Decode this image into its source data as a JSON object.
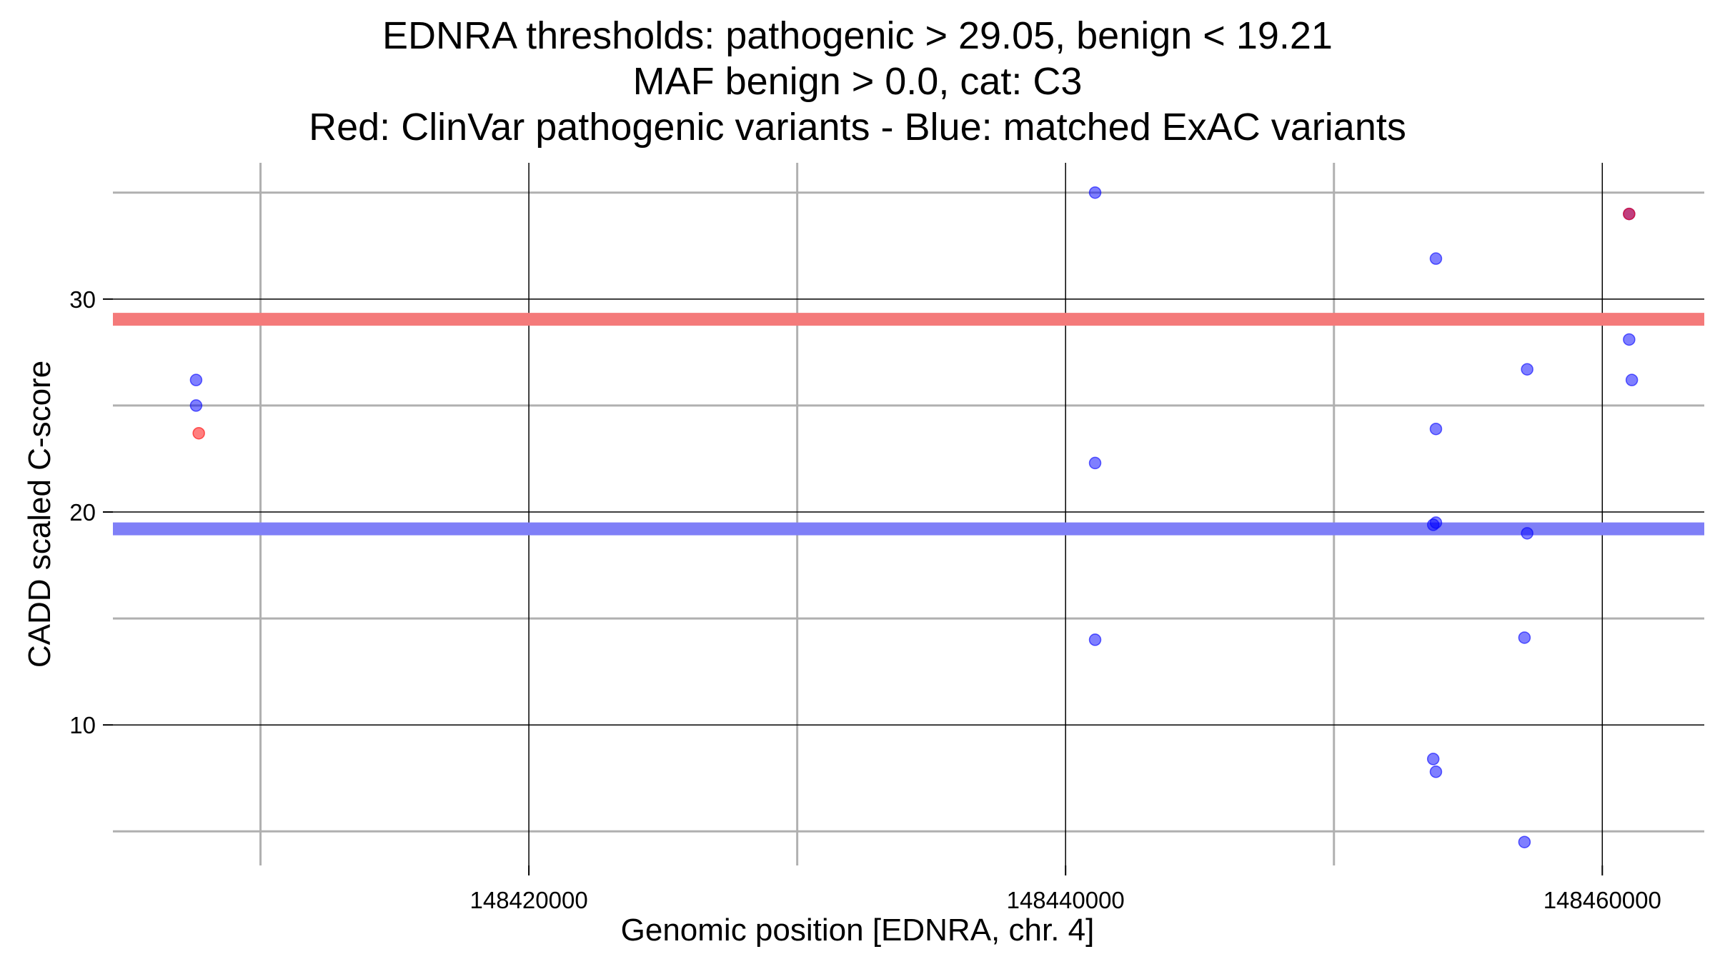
{
  "chart_data": {
    "type": "scatter",
    "title_lines": [
      "EDNRA thresholds: pathogenic > 29.05, benign < 19.21",
      "MAF benign > 0.0, cat: C3",
      "Red: ClinVar pathogenic variants - Blue: matched ExAC variants"
    ],
    "xlabel": "Genomic position [EDNRA, chr. 4]",
    "ylabel": "CADD scaled C-score",
    "x_ticks": [
      148420000,
      148440000,
      148460000
    ],
    "x_tick_labels": [
      "148420000",
      "148440000",
      "148460000"
    ],
    "x_minor_ticks": [
      148410000,
      148430000,
      148450000
    ],
    "y_ticks": [
      10,
      20,
      30
    ],
    "y_tick_labels": [
      "10",
      "20",
      "30"
    ],
    "y_minor_ticks": [
      5,
      15,
      25,
      35
    ],
    "xlim": [
      148404500,
      148463800
    ],
    "ylim": [
      3.4,
      36.4
    ],
    "thresholds": [
      {
        "name": "pathogenic",
        "value": 29.05,
        "color": "#f47a7a"
      },
      {
        "name": "benign",
        "value": 19.21,
        "color": "#7f7ff7"
      }
    ],
    "series": [
      {
        "color": "#ff0000",
        "points": [
          {
            "x": 148407700,
            "y": 23.7
          },
          {
            "x": 148461000,
            "y": 34.0
          }
        ]
      },
      {
        "color": "#0000ff",
        "points": [
          {
            "x": 148407600,
            "y": 26.2
          },
          {
            "x": 148407600,
            "y": 25.0
          },
          {
            "x": 148441100,
            "y": 35.0
          },
          {
            "x": 148441100,
            "y": 22.3
          },
          {
            "x": 148441100,
            "y": 14.0
          },
          {
            "x": 148453800,
            "y": 31.9
          },
          {
            "x": 148453800,
            "y": 23.9
          },
          {
            "x": 148453800,
            "y": 19.5
          },
          {
            "x": 148453700,
            "y": 19.4
          },
          {
            "x": 148453700,
            "y": 8.4
          },
          {
            "x": 148453800,
            "y": 7.8
          },
          {
            "x": 148457200,
            "y": 26.7
          },
          {
            "x": 148457200,
            "y": 19.0
          },
          {
            "x": 148457100,
            "y": 14.1
          },
          {
            "x": 148457100,
            "y": 4.5
          },
          {
            "x": 148461000,
            "y": 34.0
          },
          {
            "x": 148461000,
            "y": 28.1
          },
          {
            "x": 148461100,
            "y": 26.2
          }
        ]
      }
    ],
    "grid": true,
    "legend": "none"
  }
}
